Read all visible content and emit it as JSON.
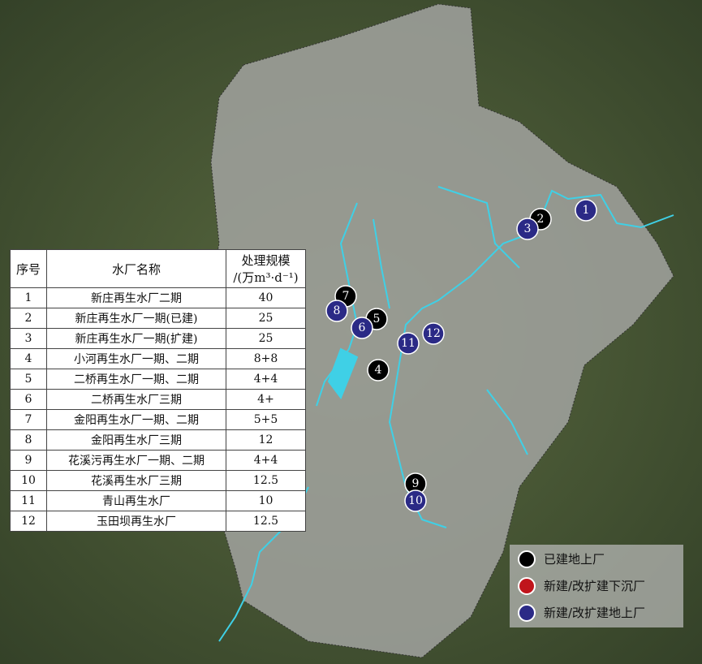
{
  "table": {
    "headers": [
      "序号",
      "水厂名称",
      "处理规模",
      "/(万m³·d⁻¹)"
    ],
    "rows": [
      {
        "no": "1",
        "name": "新庄再生水厂二期",
        "scale": "40"
      },
      {
        "no": "2",
        "name": "新庄再生水厂一期(已建)",
        "scale": "25"
      },
      {
        "no": "3",
        "name": "新庄再生水厂一期(扩建)",
        "scale": "25"
      },
      {
        "no": "4",
        "name": "小河再生水厂一期、二期",
        "scale": "8+8"
      },
      {
        "no": "5",
        "name": "二桥再生水厂一期、二期",
        "scale": "4+4"
      },
      {
        "no": "6",
        "name": "二桥再生水厂三期",
        "scale": "4+"
      },
      {
        "no": "7",
        "name": "金阳再生水厂一期、二期",
        "scale": "5+5"
      },
      {
        "no": "8",
        "name": "金阳再生水厂三期",
        "scale": "12"
      },
      {
        "no": "9",
        "name": "花溪污再生水厂一期、二期",
        "scale": "4+4"
      },
      {
        "no": "10",
        "name": "花溪再生水厂三期",
        "scale": "12.5"
      },
      {
        "no": "11",
        "name": "青山再生水厂",
        "scale": "10"
      },
      {
        "no": "12",
        "name": "玉田坝再生水厂",
        "scale": "12.5"
      }
    ]
  },
  "legend": [
    {
      "label": "已建地上厂",
      "color": "#000000"
    },
    {
      "label": "新建/改扩建下沉厂",
      "color": "#c0151c"
    },
    {
      "label": "新建/改扩建地上厂",
      "color": "#2b2a86"
    }
  ],
  "markers": [
    {
      "label": "1",
      "type": "new-above"
    },
    {
      "label": "2",
      "type": "built"
    },
    {
      "label": "3",
      "type": "new-above"
    },
    {
      "label": "4",
      "type": "built"
    },
    {
      "label": "5",
      "type": "built"
    },
    {
      "label": "6",
      "type": "new-above"
    },
    {
      "label": "7",
      "type": "built"
    },
    {
      "label": "8",
      "type": "new-above"
    },
    {
      "label": "9",
      "type": "built"
    },
    {
      "label": "10",
      "type": "new-above"
    },
    {
      "label": "11",
      "type": "new-above"
    },
    {
      "label": "12",
      "type": "new-above"
    }
  ],
  "colors": {
    "river": "#3fd0e6",
    "region": "#9a9a9a",
    "built": "#000000",
    "new_above": "#2b2a86",
    "new_sunken": "#c0151c"
  }
}
